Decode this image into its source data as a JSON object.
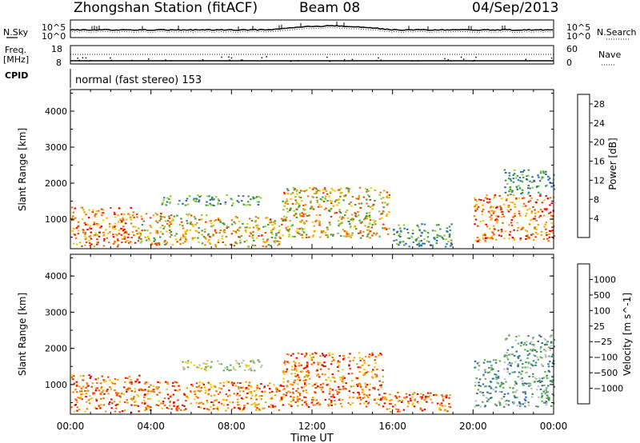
{
  "header": {
    "station": "Zhongshan Station (fitACF)",
    "beam": "Beam 08",
    "date": "04/Sep/2013"
  },
  "summary": {
    "nsky_label": "N.Sky",
    "nsearch_label": "N.Search",
    "noise_ticks": [
      "10^5",
      "10^0"
    ],
    "freq_label_top": "Freq.",
    "freq_label_unit": "[MHz]",
    "freq_ticks": [
      "18",
      "8"
    ],
    "nave_label": "Nave",
    "nave_ticks": [
      "60",
      "0"
    ],
    "cpid_label": "CPID",
    "cpid_text": "normal (fast stereo) 153"
  },
  "chart_data": [
    {
      "type": "heatmap",
      "title": "",
      "xlabel": "Time UT",
      "ylabel": "Slant Range [km]",
      "xticks": [
        "00:00",
        "04:00",
        "08:00",
        "12:00",
        "16:00",
        "20:00",
        "00:00"
      ],
      "xlim_hours": [
        0,
        24
      ],
      "yticks": [
        "1000",
        "2000",
        "3000",
        "4000"
      ],
      "ylim": [
        180,
        4600
      ],
      "colorbar": {
        "label": "Power [dB]",
        "ticks": [
          "4",
          "8",
          "12",
          "16",
          "20",
          "24",
          "28"
        ],
        "range": [
          0,
          30
        ],
        "colors": [
          "#1f27ff",
          "#2b5fc1",
          "#2f7f8f",
          "#3c9a3f",
          "#8fcf2a",
          "#f5c800",
          "#f5a000",
          "#f27000",
          "#ee3c00",
          "#e60000"
        ]
      },
      "scatter_regions": [
        {
          "x": [
            0.0,
            3.2
          ],
          "y": [
            250,
            1350
          ],
          "level": "high"
        },
        {
          "x": [
            3.2,
            7.0
          ],
          "y": [
            300,
            1200
          ],
          "level": "mid"
        },
        {
          "x": [
            7.0,
            10.5
          ],
          "y": [
            250,
            1100
          ],
          "level": "mid"
        },
        {
          "x": [
            4.5,
            9.5
          ],
          "y": [
            1400,
            1700
          ],
          "level": "low"
        },
        {
          "x": [
            10.5,
            15.8
          ],
          "y": [
            500,
            1900
          ],
          "level": "mid"
        },
        {
          "x": [
            16.0,
            19.0
          ],
          "y": [
            250,
            900
          ],
          "level": "low"
        },
        {
          "x": [
            20.0,
            24.0
          ],
          "y": [
            400,
            1700
          ],
          "level": "high"
        },
        {
          "x": [
            21.5,
            24.0
          ],
          "y": [
            1700,
            2400
          ],
          "level": "low"
        }
      ]
    },
    {
      "type": "heatmap",
      "title": "",
      "xlabel": "Time UT",
      "ylabel": "Slant Range [km]",
      "xticks": [
        "00:00",
        "04:00",
        "08:00",
        "12:00",
        "16:00",
        "20:00",
        "00:00"
      ],
      "xlim_hours": [
        0,
        24
      ],
      "yticks": [
        "1000",
        "2000",
        "3000",
        "4000"
      ],
      "ylim": [
        180,
        4600
      ],
      "colorbar": {
        "label": "Velocity [m s^-1]",
        "ticks": [
          "1000",
          "500",
          "100",
          "25",
          "-25",
          "-100",
          "-500",
          "-1000"
        ],
        "colors": [
          "#1f3cc8",
          "#2f6fa0",
          "#3a8a5a",
          "#5bb34a",
          "#bebebe",
          "#f5c800",
          "#f5a000",
          "#f27000",
          "#ee3c00",
          "#e60000"
        ]
      },
      "scatter_regions": [
        {
          "x": [
            0.0,
            3.5
          ],
          "y": [
            250,
            1300
          ],
          "level": "neg"
        },
        {
          "x": [
            3.5,
            10.5
          ],
          "y": [
            300,
            1100
          ],
          "level": "neg"
        },
        {
          "x": [
            5.5,
            9.5
          ],
          "y": [
            1400,
            1700
          ],
          "level": "zero"
        },
        {
          "x": [
            10.5,
            15.5
          ],
          "y": [
            400,
            1900
          ],
          "level": "neg"
        },
        {
          "x": [
            15.5,
            19.0
          ],
          "y": [
            250,
            800
          ],
          "level": "neg"
        },
        {
          "x": [
            20.0,
            24.0
          ],
          "y": [
            400,
            1700
          ],
          "level": "pos"
        },
        {
          "x": [
            21.5,
            24.0
          ],
          "y": [
            1700,
            2400
          ],
          "level": "pos"
        }
      ]
    }
  ]
}
